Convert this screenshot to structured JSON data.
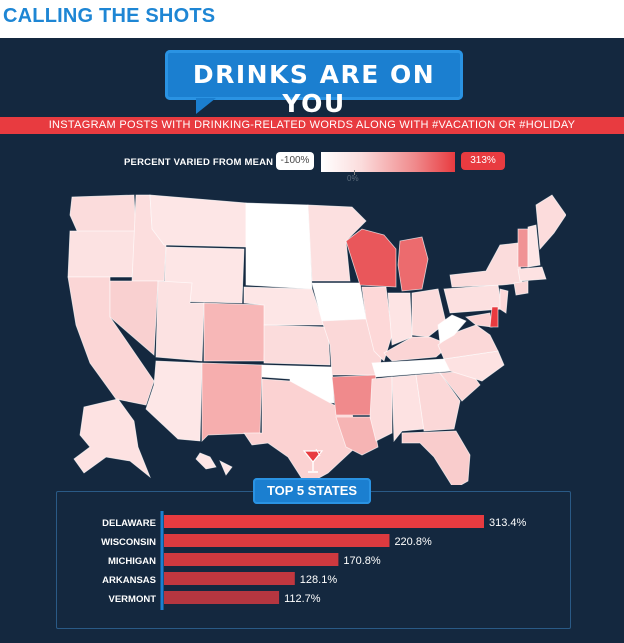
{
  "page": {
    "heading": "CALLING THE SHOTS"
  },
  "infographic": {
    "bubble_title": "DRINKS ARE ON YOU",
    "subtitle": "INSTAGRAM POSTS WITH DRINKING-RELATED WORDS ALONG WITH #VACATION OR #HOLIDAY",
    "legend": {
      "label": "PERCENT VARIED FROM MEAN",
      "min_label": "-100%",
      "zero_label": "0%",
      "max_label": "313%"
    },
    "top_states_label": "TOP 5 STATES",
    "icons": {
      "cocktail": "cocktail-glass-icon"
    }
  },
  "colors": {
    "accent_red": "#e83b40",
    "accent_blue": "#1b7fd0",
    "background_navy": "#14283f"
  },
  "chart_data": [
    {
      "type": "map",
      "scale_min": -100,
      "scale_max": 313,
      "scale_unit": "%",
      "highlighted": {
        "Delaware": 313.4,
        "Wisconsin": 220.8,
        "Michigan": 170.8,
        "Arkansas": 128.1,
        "Vermont": 112.7
      }
    },
    {
      "type": "bar",
      "orientation": "horizontal",
      "title": "TOP 5 STATES",
      "categories": [
        "DELAWARE",
        "WISCONSIN",
        "MICHIGAN",
        "ARKANSAS",
        "VERMONT"
      ],
      "values": [
        313.4,
        220.8,
        170.8,
        128.1,
        112.7
      ],
      "value_labels": [
        "313.4%",
        "220.8%",
        "170.8%",
        "128.1%",
        "112.7%"
      ],
      "xlim": [
        0,
        313.4
      ]
    }
  ]
}
